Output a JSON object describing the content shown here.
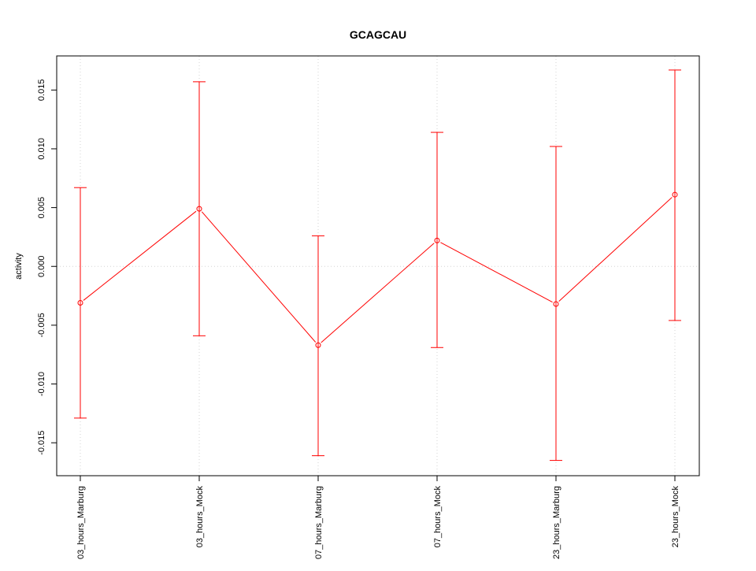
{
  "chart_data": {
    "type": "line",
    "title": "GCAGCAU",
    "xlabel": "",
    "ylabel": "activity",
    "categories": [
      "03_hours_Marburg",
      "03_hours_Mock",
      "07_hours_Marburg",
      "07_hours_Mock",
      "23_hours_Marburg",
      "23_hours_Mock"
    ],
    "series": [
      {
        "values": [
          -0.0031,
          0.0049,
          -0.0067,
          0.0022,
          -0.0032,
          0.0061
        ],
        "error_upper": [
          0.0067,
          0.0157,
          0.0026,
          0.0114,
          0.0102,
          0.0167
        ],
        "error_lower": [
          -0.0129,
          -0.0059,
          -0.0161,
          -0.0069,
          -0.0165,
          -0.0046
        ],
        "color": "#ff0000"
      }
    ],
    "yticks": [
      -0.015,
      -0.01,
      -0.005,
      0.0,
      0.005,
      0.01,
      0.015
    ],
    "ytick_labels": [
      "-0.015",
      "-0.010",
      "-0.005",
      "0.000",
      "0.005",
      "0.010",
      "0.015"
    ],
    "ylim": [
      -0.0178,
      0.0179
    ],
    "grid": true,
    "grid_color": "#d3d3d3"
  }
}
